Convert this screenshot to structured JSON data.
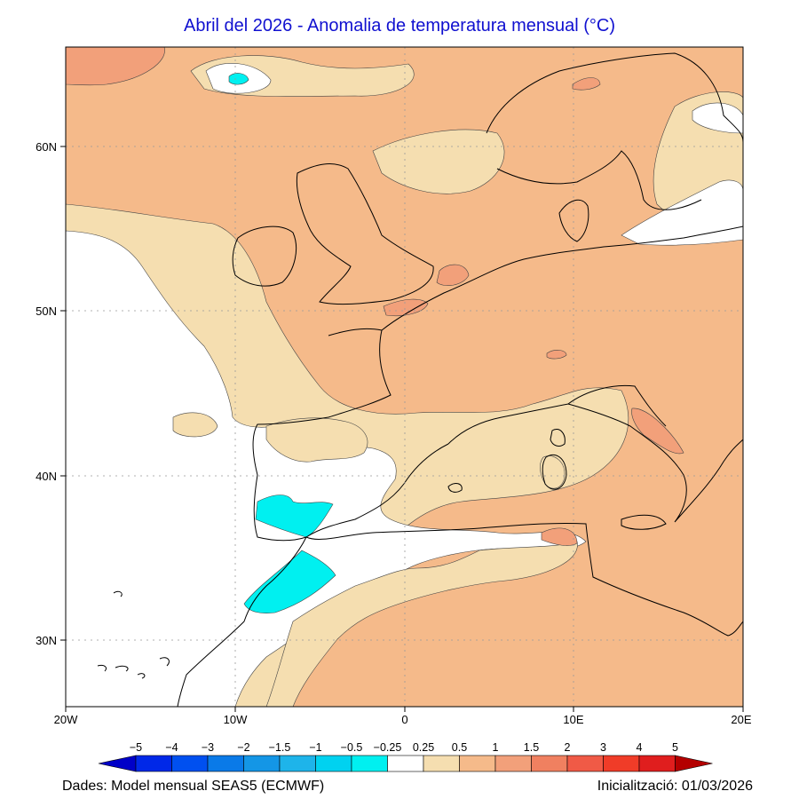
{
  "title": "Abril del 2026 - Anomalia de temperatura mensual (°C)",
  "axes": {
    "lat_labels": [
      "60N",
      "50N",
      "40N",
      "30N"
    ],
    "lon_labels": [
      "20W",
      "10W",
      "0",
      "10E",
      "20E"
    ],
    "lat_range": [
      26,
      66
    ],
    "lon_range": [
      -20,
      20
    ]
  },
  "colorbar": {
    "labels": [
      "-5",
      "-4",
      "-3",
      "-2",
      "-1.5",
      "-1",
      "-0.5",
      "-0.25",
      "0.25",
      "0.5",
      "1",
      "1.5",
      "2",
      "3",
      "4",
      "5"
    ],
    "colors": [
      "#0000c8",
      "#0028e8",
      "#0050f0",
      "#0a7ae8",
      "#1496e6",
      "#1eb4ea",
      "#00d2f0",
      "#00f0f0",
      "#ffffff",
      "#f5deb0",
      "#f5ba8a",
      "#f2a07a",
      "#f08060",
      "#f05a46",
      "#f03c28",
      "#e01e1e",
      "#b40000"
    ]
  },
  "footer": {
    "source": "Dades: Model mensual SEAS5 (ECMWF)",
    "init": "Inicialització: 01/03/2026"
  }
}
